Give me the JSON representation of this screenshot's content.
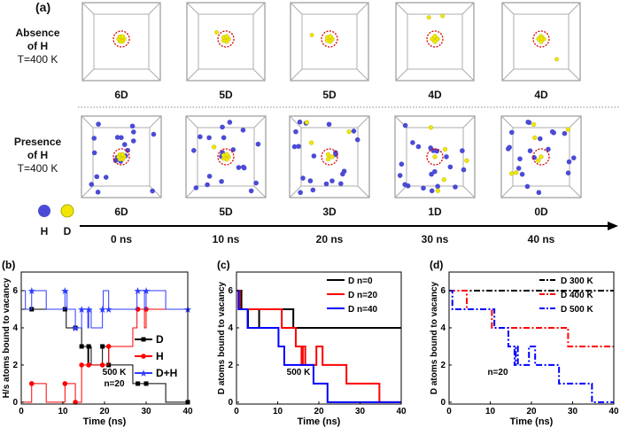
{
  "panel_a": {
    "label": "(a)",
    "row1_title": [
      "Absence",
      "of H"
    ],
    "row1_temp": "T=400 K",
    "row2_title": [
      "Presence",
      "of H"
    ],
    "row2_temp": "T=400 K",
    "row1_counts": [
      "6D",
      "5D",
      "5D",
      "4D",
      "4D"
    ],
    "row2_counts": [
      "6D",
      "5D",
      "3D",
      "1D",
      "0D"
    ],
    "times": [
      "0 ns",
      "10 ns",
      "20 ns",
      "30 ns",
      "40 ns"
    ],
    "legend": [
      {
        "label": "H",
        "color": "#4b4bd6"
      },
      {
        "label": "D",
        "color": "#f2e600"
      }
    ]
  },
  "chart_data": [
    {
      "panel": "(b)",
      "type": "line",
      "step": true,
      "xlabel": "Time (ns)",
      "ylabel": "H/s atoms bound to vacancy",
      "xlim": [
        0,
        40
      ],
      "ylim": [
        -0.1,
        7
      ],
      "xticks": [
        0,
        10,
        20,
        30,
        40
      ],
      "yticks": [
        0,
        2,
        4,
        6
      ],
      "annotation": [
        "500 K",
        "n=20"
      ],
      "legend_position": "right",
      "series": [
        {
          "name": "D",
          "color": "#000000",
          "marker": "square",
          "steps": [
            [
              0,
              5
            ],
            [
              10.8,
              4
            ],
            [
              14.5,
              3
            ],
            [
              16,
              2
            ],
            [
              16.2,
              3
            ],
            [
              16.8,
              2
            ],
            [
              19.5,
              3
            ],
            [
              21,
              2
            ],
            [
              26.8,
              1
            ],
            [
              34.7,
              0
            ],
            [
              40,
              0
            ]
          ],
          "markers": [
            [
              2.5,
              5
            ],
            [
              10.5,
              5
            ],
            [
              13,
              4
            ],
            [
              14.5,
              3
            ],
            [
              16.2,
              3
            ],
            [
              19.5,
              3
            ],
            [
              21,
              2
            ],
            [
              28,
              1
            ],
            [
              30,
              1
            ],
            [
              40,
              0
            ]
          ]
        },
        {
          "name": "H",
          "color": "#ff0000",
          "marker": "circle",
          "steps": [
            [
              0,
              0
            ],
            [
              2.5,
              1
            ],
            [
              6,
              0
            ],
            [
              10.5,
              1
            ],
            [
              13,
              0
            ],
            [
              14.5,
              2
            ],
            [
              19.5,
              2
            ],
            [
              21,
              3
            ],
            [
              26.8,
              4
            ],
            [
              27.8,
              5
            ],
            [
              29.6,
              4
            ],
            [
              30,
              5
            ],
            [
              40,
              5
            ]
          ],
          "markers": [
            [
              2.5,
              1
            ],
            [
              10.5,
              1
            ],
            [
              13,
              0
            ],
            [
              14.5,
              2
            ],
            [
              16.2,
              2
            ],
            [
              19.5,
              2
            ],
            [
              21,
              3
            ],
            [
              28,
              5
            ],
            [
              30,
              5
            ]
          ]
        },
        {
          "name": "D+H",
          "color": "#2e3bff",
          "marker": "star",
          "steps": [
            [
              0,
              6
            ],
            [
              1,
              5
            ],
            [
              2.5,
              6
            ],
            [
              6,
              5
            ],
            [
              10.5,
              6
            ],
            [
              11,
              5
            ],
            [
              13,
              4
            ],
            [
              14.5,
              5
            ],
            [
              16,
              4
            ],
            [
              16.2,
              5
            ],
            [
              16.8,
              4
            ],
            [
              19.5,
              5
            ],
            [
              19.7,
              6
            ],
            [
              21,
              5
            ],
            [
              27.8,
              6
            ],
            [
              29.6,
              5
            ],
            [
              30,
              6
            ],
            [
              34.7,
              5
            ],
            [
              40,
              5
            ]
          ],
          "markers": [
            [
              2.5,
              6
            ],
            [
              10.5,
              6
            ],
            [
              13,
              4
            ],
            [
              14.5,
              5
            ],
            [
              16.2,
              5
            ],
            [
              19.5,
              5
            ],
            [
              21,
              5
            ],
            [
              28,
              6
            ],
            [
              30,
              6
            ],
            [
              40,
              5
            ]
          ]
        }
      ]
    },
    {
      "panel": "(c)",
      "type": "line",
      "step": true,
      "xlabel": "Time (ns)",
      "ylabel": "D atoms bound to vacancy",
      "xlim": [
        0,
        40
      ],
      "ylim": [
        -0.1,
        7
      ],
      "xticks": [
        0,
        10,
        20,
        30,
        40
      ],
      "yticks": [
        0,
        2,
        4,
        6
      ],
      "annotation": [
        "500 K"
      ],
      "legend_position": "top-right",
      "series": [
        {
          "name": "D n=0",
          "color": "#000000",
          "steps": [
            [
              0,
              6
            ],
            [
              1.2,
              5
            ],
            [
              2.8,
              4
            ],
            [
              5.5,
              5
            ],
            [
              13.8,
              4
            ],
            [
              40,
              4
            ]
          ]
        },
        {
          "name": "D n=20",
          "color": "#ff0000",
          "steps": [
            [
              0,
              6
            ],
            [
              0.8,
              5
            ],
            [
              11,
              4
            ],
            [
              14.4,
              3
            ],
            [
              15.8,
              2
            ],
            [
              16.1,
              3
            ],
            [
              16.7,
              2
            ],
            [
              19.4,
              3
            ],
            [
              20.9,
              2
            ],
            [
              26.7,
              1
            ],
            [
              34.7,
              0
            ],
            [
              40,
              0
            ]
          ]
        },
        {
          "name": "D n=40",
          "color": "#0000ff",
          "steps": [
            [
              0,
              6
            ],
            [
              0.5,
              5
            ],
            [
              2.7,
              4
            ],
            [
              10.2,
              3
            ],
            [
              11.6,
              2
            ],
            [
              18.7,
              1
            ],
            [
              22.1,
              0
            ],
            [
              40,
              0
            ]
          ]
        }
      ]
    },
    {
      "panel": "(d)",
      "type": "line",
      "step": true,
      "xlabel": "Time (ns)",
      "ylabel": "D atoms bound to vacancy",
      "xlim": [
        0,
        40
      ],
      "ylim": [
        -0.1,
        7
      ],
      "xticks": [
        0,
        10,
        20,
        30,
        40
      ],
      "yticks": [
        0,
        2,
        4,
        6
      ],
      "annotation": [
        "n=20"
      ],
      "legend_position": "top-right",
      "series": [
        {
          "name": "D 300 K",
          "color": "#000000",
          "dash": "dash-dot",
          "steps": [
            [
              0,
              6
            ],
            [
              40,
              6
            ]
          ]
        },
        {
          "name": "D 400 K",
          "color": "#ff0000",
          "dash": "dash-dot",
          "steps": [
            [
              0,
              6
            ],
            [
              4.3,
              5
            ],
            [
              10.4,
              4
            ],
            [
              28.9,
              3
            ],
            [
              40,
              3
            ]
          ]
        },
        {
          "name": "D 500 K",
          "color": "#0000ff",
          "dash": "dash-dot",
          "steps": [
            [
              0,
              6
            ],
            [
              0.8,
              5
            ],
            [
              11,
              4
            ],
            [
              14.4,
              3
            ],
            [
              15.9,
              2
            ],
            [
              16.2,
              3
            ],
            [
              16.7,
              2
            ],
            [
              19.4,
              3
            ],
            [
              20.9,
              2
            ],
            [
              26.7,
              1
            ],
            [
              34.7,
              0
            ],
            [
              40,
              0
            ]
          ]
        }
      ]
    }
  ]
}
